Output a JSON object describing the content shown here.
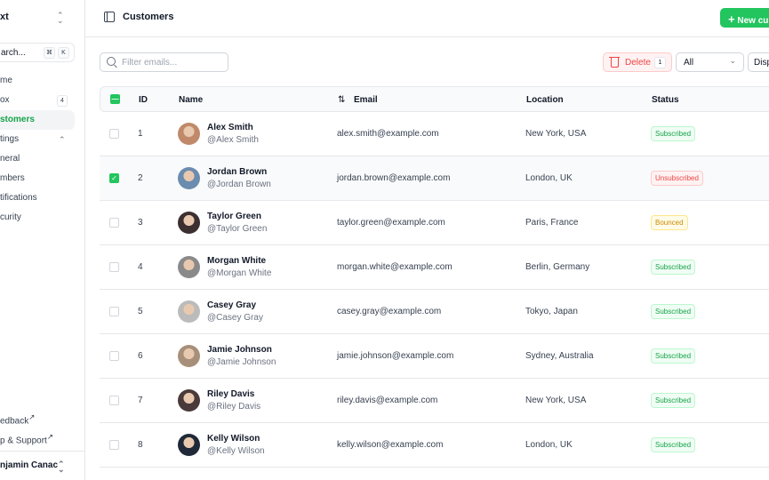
{
  "sidebar": {
    "team": "xt",
    "search": "arch...",
    "kbd": [
      "⌘",
      "K"
    ],
    "items": [
      {
        "label": "me"
      },
      {
        "label": "ox",
        "badge": "4"
      },
      {
        "label": "stomers",
        "active": true
      },
      {
        "label": "tings"
      },
      {
        "label": "neral"
      },
      {
        "label": "mbers"
      },
      {
        "label": "tifications"
      },
      {
        "label": "curity"
      }
    ],
    "links": [
      "edback",
      "p & Support"
    ],
    "user": "njamin Canac"
  },
  "header": {
    "title": "Customers",
    "new_button": "New cu"
  },
  "toolbar": {
    "filter_placeholder": "Filter emails...",
    "delete_label": "Delete",
    "delete_count": "1",
    "select_value": "All",
    "display_label": "Disp"
  },
  "table": {
    "headers": {
      "id": "ID",
      "name": "Name",
      "email": "Email",
      "location": "Location",
      "status": "Status"
    },
    "rows": [
      {
        "id": "1",
        "name": "Alex Smith",
        "handle": "@Alex Smith",
        "email": "alex.smith@example.com",
        "location": "New York, USA",
        "status": "Subscribed",
        "checked": false
      },
      {
        "id": "2",
        "name": "Jordan Brown",
        "handle": "@Jordan Brown",
        "email": "jordan.brown@example.com",
        "location": "London, UK",
        "status": "Unsubscribed",
        "checked": true
      },
      {
        "id": "3",
        "name": "Taylor Green",
        "handle": "@Taylor Green",
        "email": "taylor.green@example.com",
        "location": "Paris, France",
        "status": "Bounced",
        "checked": false
      },
      {
        "id": "4",
        "name": "Morgan White",
        "handle": "@Morgan White",
        "email": "morgan.white@example.com",
        "location": "Berlin, Germany",
        "status": "Subscribed",
        "checked": false
      },
      {
        "id": "5",
        "name": "Casey Gray",
        "handle": "@Casey Gray",
        "email": "casey.gray@example.com",
        "location": "Tokyo, Japan",
        "status": "Subscribed",
        "checked": false
      },
      {
        "id": "6",
        "name": "Jamie Johnson",
        "handle": "@Jamie Johnson",
        "email": "jamie.johnson@example.com",
        "location": "Sydney, Australia",
        "status": "Subscribed",
        "checked": false
      },
      {
        "id": "7",
        "name": "Riley Davis",
        "handle": "@Riley Davis",
        "email": "riley.davis@example.com",
        "location": "New York, USA",
        "status": "Subscribed",
        "checked": false
      },
      {
        "id": "8",
        "name": "Kelly Wilson",
        "handle": "@Kelly Wilson",
        "email": "kelly.wilson@example.com",
        "location": "London, UK",
        "status": "Subscribed",
        "checked": false
      }
    ]
  },
  "colors": {
    "accent": "#22c55e",
    "danger": "#ef4444",
    "bounced": "#eab308"
  }
}
